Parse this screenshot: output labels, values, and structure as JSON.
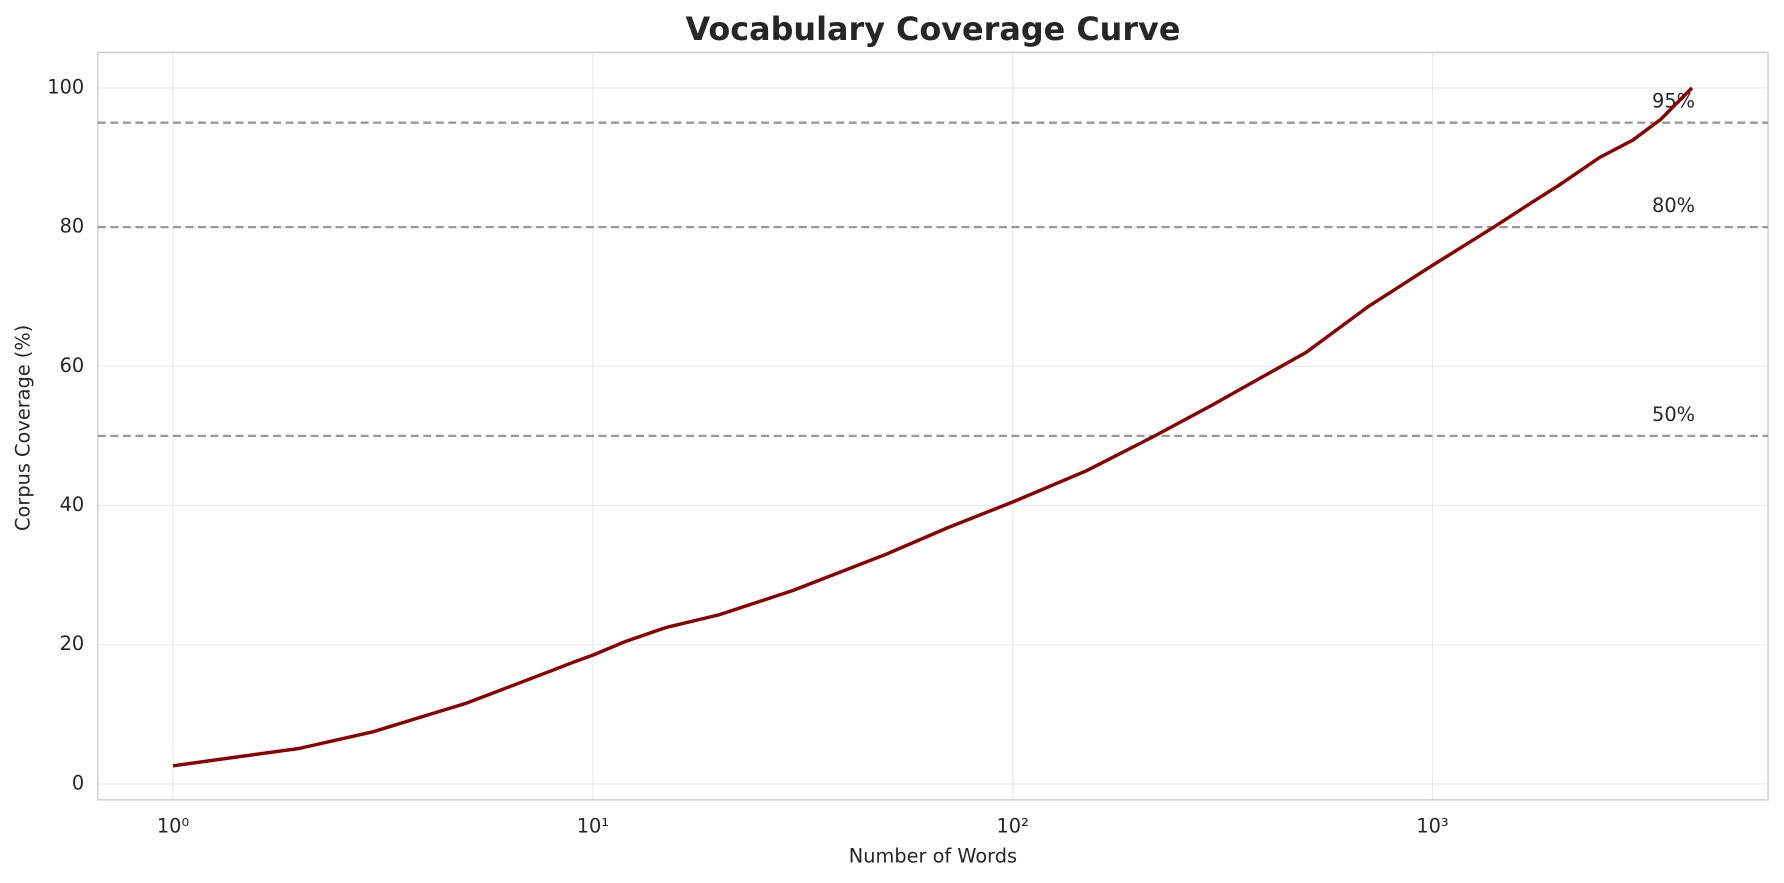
{
  "chart_data": {
    "type": "line",
    "title": "Vocabulary Coverage Curve",
    "x_label": "Number of Words",
    "y_label": "Corpus Coverage (%)",
    "x": [
      1,
      2,
      3,
      5,
      8,
      9,
      10,
      12,
      15,
      20,
      30,
      50,
      70,
      100,
      150,
      218,
      300,
      500,
      700,
      1000,
      1400,
      1700,
      2000,
      2500,
      3000,
      3500,
      4150
    ],
    "series": [
      {
        "name": "Coverage",
        "color": "#8b0000",
        "values": [
          2.6,
          5.1,
          7.5,
          11.6,
          16.3,
          17.5,
          18.5,
          20.5,
          22.5,
          24.3,
          27.8,
          33,
          36.8,
          40.5,
          45,
          50,
          54.5,
          62,
          68.5,
          74.5,
          80,
          83.3,
          86,
          90,
          92.5,
          95.5,
          100
        ]
      }
    ],
    "x_log": true,
    "xlim": [
      0.662,
      6300
    ],
    "ylim": [
      -2.3,
      105.1
    ],
    "xticks": [
      {
        "value": 1,
        "label": "10⁰"
      },
      {
        "value": 10,
        "label": "10¹"
      },
      {
        "value": 100,
        "label": "10²"
      },
      {
        "value": 1000,
        "label": "10³"
      }
    ],
    "yticks": [
      0,
      20,
      40,
      60,
      80,
      100
    ],
    "hlines": [
      {
        "value": 50,
        "label": "50%"
      },
      {
        "value": 80,
        "label": "80%"
      },
      {
        "value": 95,
        "label": "95%"
      }
    ],
    "grid": true
  }
}
